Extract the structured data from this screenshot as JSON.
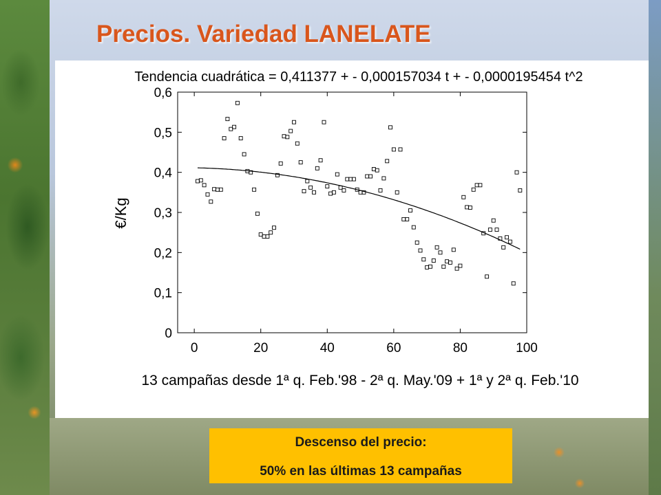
{
  "slide": {
    "title": "Precios. Variedad LANELATE",
    "callout_line1": "Descenso del precio:",
    "callout_line2": "50% en las últimas 13 campañas",
    "title_color": "#d9561c",
    "callout_color": "#ffc000"
  },
  "chart_data": {
    "type": "scatter",
    "title": "Tendencia cuadrática = 0,411377 + - 0,000157034 t + - 0,0000195454 t^2",
    "xlabel": "13 campañas desde 1ª q. Feb.'98 - 2ª q. May.'09 + 1ª y 2ª q. Feb.'10",
    "ylabel": "€/Kg",
    "xlim": [
      -5,
      100
    ],
    "ylim": [
      0,
      0.6
    ],
    "x_ticks": [
      0,
      20,
      40,
      60,
      80,
      100
    ],
    "x_tick_labels": [
      "0",
      "20",
      "40",
      "60",
      "80",
      "100"
    ],
    "y_ticks": [
      0,
      0.1,
      0.2,
      0.3,
      0.4,
      0.5,
      0.6
    ],
    "y_tick_labels": [
      "0",
      "0,1",
      "0,2",
      "0,3",
      "0,4",
      "0,5",
      "0,6"
    ],
    "grid": false,
    "trend": {
      "a": 0.411377,
      "b": -0.000157034,
      "c": -1.95454e-05,
      "x_range": [
        1,
        98
      ]
    },
    "points": [
      [
        1,
        0.378
      ],
      [
        2,
        0.38
      ],
      [
        3,
        0.368
      ],
      [
        4,
        0.345
      ],
      [
        5,
        0.327
      ],
      [
        6,
        0.358
      ],
      [
        7,
        0.357
      ],
      [
        8,
        0.357
      ],
      [
        9,
        0.485
      ],
      [
        10,
        0.533
      ],
      [
        11,
        0.508
      ],
      [
        12,
        0.513
      ],
      [
        13,
        0.573
      ],
      [
        14,
        0.485
      ],
      [
        15,
        0.445
      ],
      [
        16,
        0.403
      ],
      [
        17,
        0.4
      ],
      [
        18,
        0.357
      ],
      [
        19,
        0.297
      ],
      [
        20,
        0.245
      ],
      [
        21,
        0.24
      ],
      [
        22,
        0.24
      ],
      [
        23,
        0.25
      ],
      [
        24,
        0.262
      ],
      [
        25,
        0.393
      ],
      [
        26,
        0.422
      ],
      [
        27,
        0.49
      ],
      [
        28,
        0.488
      ],
      [
        29,
        0.503
      ],
      [
        30,
        0.525
      ],
      [
        31,
        0.472
      ],
      [
        32,
        0.425
      ],
      [
        33,
        0.353
      ],
      [
        34,
        0.378
      ],
      [
        35,
        0.362
      ],
      [
        36,
        0.35
      ],
      [
        37,
        0.41
      ],
      [
        38,
        0.43
      ],
      [
        39,
        0.525
      ],
      [
        40,
        0.365
      ],
      [
        41,
        0.347
      ],
      [
        42,
        0.35
      ],
      [
        43,
        0.395
      ],
      [
        44,
        0.362
      ],
      [
        45,
        0.355
      ],
      [
        46,
        0.383
      ],
      [
        47,
        0.383
      ],
      [
        48,
        0.383
      ],
      [
        49,
        0.357
      ],
      [
        50,
        0.35
      ],
      [
        51,
        0.35
      ],
      [
        52,
        0.39
      ],
      [
        53,
        0.39
      ],
      [
        54,
        0.408
      ],
      [
        55,
        0.405
      ],
      [
        56,
        0.355
      ],
      [
        57,
        0.385
      ],
      [
        58,
        0.428
      ],
      [
        59,
        0.512
      ],
      [
        60,
        0.457
      ],
      [
        61,
        0.35
      ],
      [
        62,
        0.457
      ],
      [
        63,
        0.283
      ],
      [
        64,
        0.283
      ],
      [
        65,
        0.305
      ],
      [
        66,
        0.263
      ],
      [
        67,
        0.225
      ],
      [
        68,
        0.205
      ],
      [
        69,
        0.183
      ],
      [
        70,
        0.163
      ],
      [
        71,
        0.165
      ],
      [
        72,
        0.18
      ],
      [
        73,
        0.213
      ],
      [
        74,
        0.2
      ],
      [
        75,
        0.165
      ],
      [
        76,
        0.178
      ],
      [
        77,
        0.175
      ],
      [
        78,
        0.207
      ],
      [
        79,
        0.16
      ],
      [
        80,
        0.167
      ],
      [
        81,
        0.338
      ],
      [
        82,
        0.313
      ],
      [
        83,
        0.312
      ],
      [
        84,
        0.357
      ],
      [
        85,
        0.368
      ],
      [
        86,
        0.368
      ],
      [
        87,
        0.248
      ],
      [
        88,
        0.14
      ],
      [
        89,
        0.257
      ],
      [
        90,
        0.28
      ],
      [
        91,
        0.257
      ],
      [
        92,
        0.235
      ],
      [
        93,
        0.213
      ],
      [
        94,
        0.238
      ],
      [
        95,
        0.227
      ],
      [
        96,
        0.123
      ],
      [
        97,
        0.4
      ],
      [
        98,
        0.355
      ]
    ]
  }
}
